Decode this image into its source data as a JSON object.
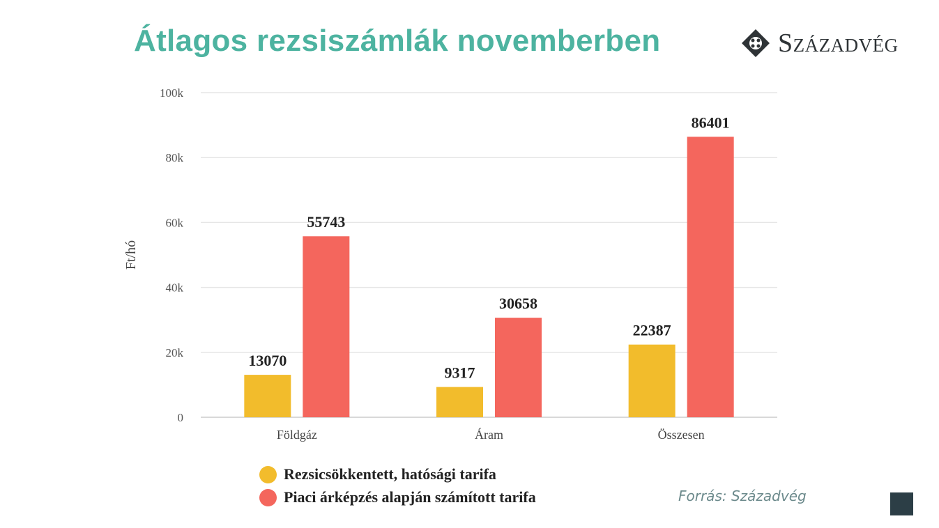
{
  "title": "Átlagos rezsiszámlák novemberben",
  "logo_text": "Századvég",
  "source": "Forrás: Századvég",
  "colors": {
    "title": "#4db3a0",
    "series1": "#f2bc2c",
    "series2": "#f4665d"
  },
  "chart_data": {
    "type": "bar",
    "categories": [
      "Földgáz",
      "Áram",
      "Összesen"
    ],
    "series": [
      {
        "name": "Rezsicsökkentett, hatósági tarifa",
        "values": [
          13070,
          9317,
          22387
        ],
        "color": "#f2bc2c"
      },
      {
        "name": "Piaci árképzés alapján számított tarifa",
        "values": [
          55743,
          30658,
          86401
        ],
        "color": "#f4665d"
      }
    ],
    "ylabel": "Ft/hó",
    "ylim": [
      0,
      100000
    ],
    "yticks": [
      0,
      20000,
      40000,
      60000,
      80000,
      100000
    ],
    "ytick_labels": [
      "0",
      "20k",
      "40k",
      "60k",
      "80k",
      "100k"
    ],
    "grid": true,
    "legend": "bottom"
  }
}
